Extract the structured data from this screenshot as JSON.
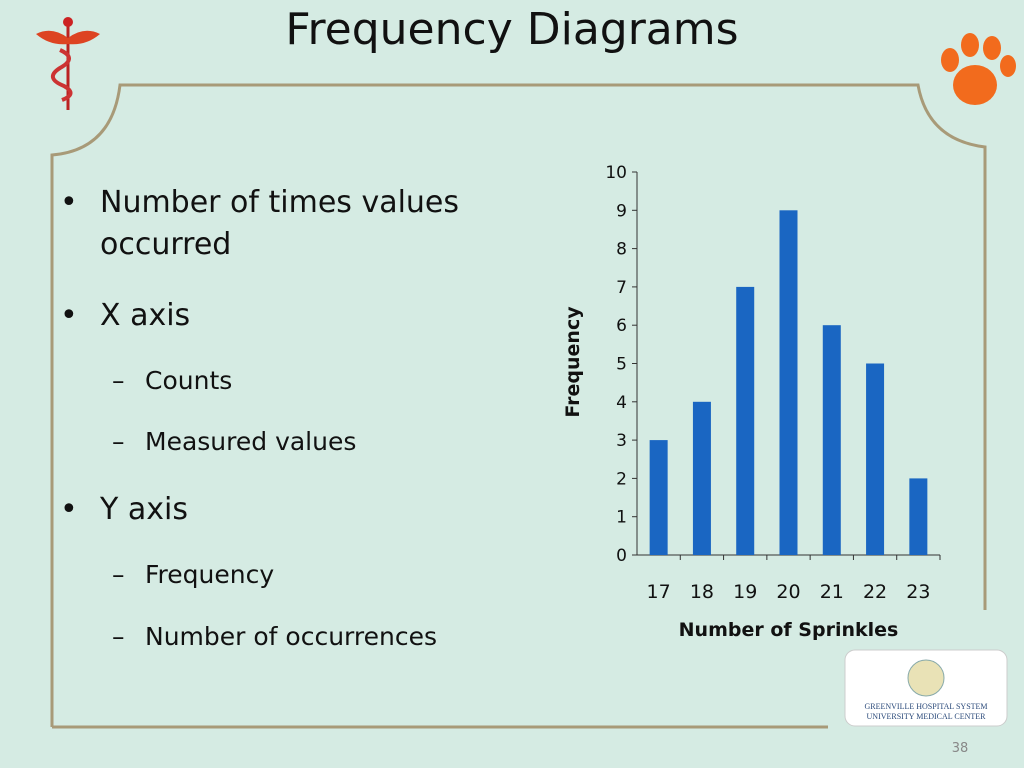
{
  "title": "Frequency Diagrams",
  "bullets": [
    {
      "text": "Number of times values occurred",
      "level": 1
    },
    {
      "text": "X axis",
      "level": 1
    },
    {
      "text": "Counts",
      "level": 2
    },
    {
      "text": "Measured values",
      "level": 2
    },
    {
      "text": "Y axis",
      "level": 1
    },
    {
      "text": "Frequency",
      "level": 2
    },
    {
      "text": "Number of occurrences",
      "level": 2
    }
  ],
  "chart_data": {
    "type": "bar",
    "x_label": "Number of Sprinkles",
    "y_label": "Frequency",
    "categories": [
      "17",
      "18",
      "19",
      "20",
      "21",
      "22",
      "23"
    ],
    "values": [
      3,
      4,
      7,
      9,
      6,
      5,
      2
    ],
    "color": "#1a66c2",
    "ylim": [
      0,
      10
    ],
    "yticks": [
      0,
      1,
      2,
      3,
      4,
      5,
      6,
      7,
      8,
      9,
      10
    ]
  },
  "logo": {
    "line1": "GREENVILLE HOSPITAL SYSTEM",
    "line2": "UNIVERSITY MEDICAL CENTER"
  },
  "slide_number": "38"
}
